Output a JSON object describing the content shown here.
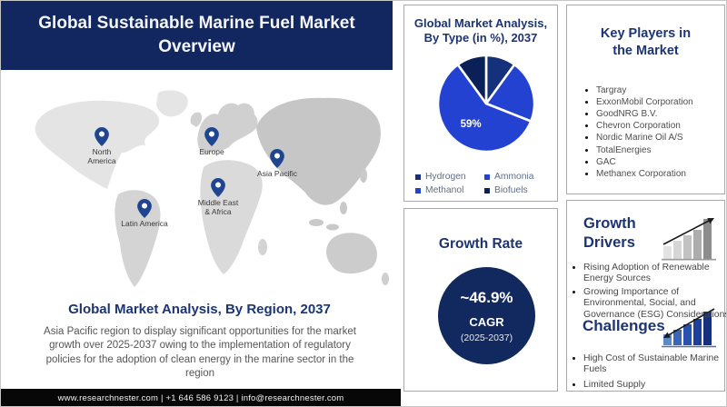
{
  "header": {
    "title": "Global Sustainable Marine Fuel Market Overview"
  },
  "map_section": {
    "regions": [
      {
        "label": "North America"
      },
      {
        "label": "Europe"
      },
      {
        "label": "Asia Pacific"
      },
      {
        "label": "Middle East & Africa"
      },
      {
        "label": "Latin America"
      }
    ],
    "heading": "Global Market Analysis, By Region, 2037",
    "description": "Asia Pacific region to display significant opportunities for the market growth over 2025-2037 owing to the implementation of regulatory policies for the adoption of clean energy in the marine sector in the region"
  },
  "chart_data": {
    "type": "pie",
    "title": "Global Market Analysis, By Type (in %), 2037",
    "segments": [
      {
        "label": "Hydrogen",
        "value": 10,
        "color": "#15317c",
        "data_label": ""
      },
      {
        "label": "Ammonia",
        "value": 21,
        "color": "#2342d1",
        "data_label": ""
      },
      {
        "label": "Methanol",
        "value": 59,
        "color": "#2342d1",
        "data_label": "59%"
      },
      {
        "label": "Biofuels",
        "value": 10,
        "color": "#0a2158",
        "data_label": ""
      }
    ],
    "start_angle_deg": 0,
    "direction": "clockwise",
    "legend_position": "bottom",
    "note": "Only the 59% slice carries a data label; other slice values estimated from arc angles"
  },
  "growth_section": {
    "heading": "Growth Rate",
    "value": "~46.9%",
    "metric": "CAGR",
    "period": "(2025-2037)"
  },
  "key_players": {
    "heading": "Key Players in the Market",
    "items": [
      "Targray",
      "ExxonMobil Corporation",
      "GoodNRG B.V.",
      "Chevron Corporation",
      "Nordic Marine Oil A/S",
      "TotalEnergies",
      "GAC",
      "Methanex Corporation"
    ]
  },
  "drivers_section": {
    "heading": "Growth Drivers",
    "icon": "ascending-bars-up-arrow-icon",
    "items": [
      "Rising Adoption of Renewable Energy Sources",
      "Growing Importance of Environmental, Social, and Governance (ESG) Considerations"
    ]
  },
  "challenges_section": {
    "heading": "Challenges",
    "icon": "ascending-bars-down-arrow-icon",
    "items": [
      "High Cost of Sustainable Marine Fuels",
      "Limited Supply"
    ]
  },
  "footer": {
    "text": "www.researchnester.com | +1 646 586 9123 | info@researchnester.com"
  },
  "colors": {
    "header_navy": "#12265f",
    "heading_navy": "#1c3472",
    "pie_royal_blue": "#2342d1",
    "pie_dark_navy": "#0a2158",
    "circle_navy": "#12295f",
    "footer_black": "#070707",
    "body_gray": "#555555"
  }
}
